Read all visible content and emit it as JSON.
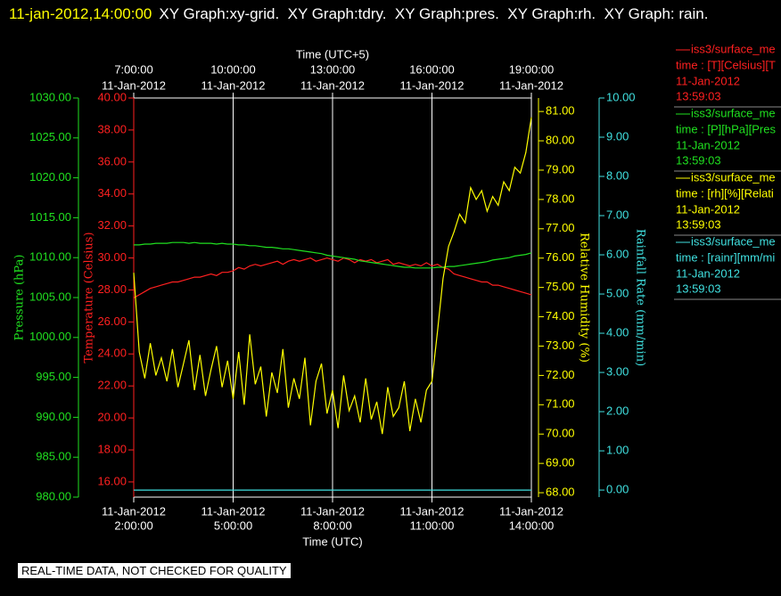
{
  "chart_data": {
    "type": "line",
    "title": "11-jan-2012,14:00:00",
    "title_rest": "XY Graph:xy-grid.  XY Graph:tdry.  XY Graph:pres.  XY Graph:rh.  XY Graph: rain.",
    "xlabel": "Time (UTC)",
    "x2label": "Time (UTC+5)",
    "grid": true,
    "footer": "REAL-TIME DATA, NOT CHECKED FOR QUALITY",
    "xlim": [
      "02:00",
      "14:00"
    ],
    "xticks": [
      {
        "value": "02:00",
        "label": "2:00:00"
      },
      {
        "value": "05:00",
        "label": "5:00:00"
      },
      {
        "value": "08:00",
        "label": "8:00:00"
      },
      {
        "value": "11:00",
        "label": "11:00:00"
      },
      {
        "value": "14:00",
        "label": "14:00:00"
      }
    ],
    "xtick_dates": [
      "11-Jan-2012",
      "11-Jan-2012",
      "11-Jan-2012",
      "11-Jan-2012",
      "11-Jan-2012"
    ],
    "x2lim": [
      "07:00",
      "19:00"
    ],
    "x2ticks": [
      {
        "value": "07:00",
        "label": "7:00:00"
      },
      {
        "value": "10:00",
        "label": "10:00:00"
      },
      {
        "value": "13:00",
        "label": "13:00:00"
      },
      {
        "value": "16:00",
        "label": "16:00:00"
      },
      {
        "value": "19:00",
        "label": "19:00:00"
      }
    ],
    "x2tick_dates": [
      "11-Jan-2012",
      "11-Jan-2012",
      "11-Jan-2012",
      "11-Jan-2012",
      "11-Jan-2012"
    ],
    "x": [
      "02:00",
      "02:10",
      "02:20",
      "02:30",
      "02:40",
      "02:50",
      "03:00",
      "03:10",
      "03:20",
      "03:30",
      "03:40",
      "03:50",
      "04:00",
      "04:10",
      "04:20",
      "04:30",
      "04:40",
      "04:50",
      "05:00",
      "05:10",
      "05:20",
      "05:30",
      "05:40",
      "05:50",
      "06:00",
      "06:10",
      "06:20",
      "06:30",
      "06:40",
      "06:50",
      "07:00",
      "07:10",
      "07:20",
      "07:30",
      "07:40",
      "07:50",
      "08:00",
      "08:10",
      "08:20",
      "08:30",
      "08:40",
      "08:50",
      "09:00",
      "09:10",
      "09:20",
      "09:30",
      "09:40",
      "09:50",
      "10:00",
      "10:10",
      "10:20",
      "10:30",
      "10:40",
      "10:50",
      "11:00",
      "11:10",
      "11:20",
      "11:30",
      "11:40",
      "11:50",
      "12:00",
      "12:10",
      "12:20",
      "12:30",
      "12:40",
      "12:50",
      "13:00",
      "13:10",
      "13:20",
      "13:30",
      "13:40",
      "13:50",
      "14:00"
    ],
    "series": [
      {
        "name": "iss3/surface_me",
        "color": "#ff2020",
        "legend_label": "time : [T][Celsius][T",
        "legend_date": "11-Jan-2012",
        "legend_time": "13:59:03",
        "ylabel": "Temperature (Celsius)",
        "ylim": [
          15.05,
          40
        ],
        "yticks": [
          {
            "value": 16,
            "label": "16.00"
          },
          {
            "value": 18,
            "label": "18.00"
          },
          {
            "value": 20,
            "label": "20.00"
          },
          {
            "value": 22,
            "label": "22.00"
          },
          {
            "value": 24,
            "label": "24.00"
          },
          {
            "value": 26,
            "label": "26.00"
          },
          {
            "value": 28,
            "label": "28.00"
          },
          {
            "value": 30,
            "label": "30.00"
          },
          {
            "value": 32,
            "label": "32.00"
          },
          {
            "value": 34,
            "label": "34.00"
          },
          {
            "value": 36,
            "label": "36.00"
          },
          {
            "value": 38,
            "label": "38.00"
          },
          {
            "value": 40,
            "label": "40.00"
          }
        ],
        "values": [
          27.5,
          27.7,
          27.9,
          28.1,
          28.2,
          28.3,
          28.4,
          28.5,
          28.5,
          28.6,
          28.7,
          28.8,
          28.8,
          28.9,
          29.0,
          28.9,
          29.1,
          29.1,
          29.2,
          29.4,
          29.3,
          29.5,
          29.6,
          29.5,
          29.6,
          29.7,
          29.8,
          29.6,
          29.8,
          29.9,
          29.8,
          29.9,
          30.0,
          29.8,
          29.9,
          30.0,
          29.9,
          29.8,
          30.0,
          29.9,
          29.7,
          29.9,
          29.8,
          29.9,
          29.7,
          29.8,
          29.9,
          29.6,
          29.7,
          29.6,
          29.5,
          29.6,
          29.5,
          29.7,
          29.5,
          29.6,
          29.4,
          29.3,
          29.0,
          28.9,
          28.8,
          28.7,
          28.6,
          28.5,
          28.5,
          28.3,
          28.3,
          28.2,
          28.1,
          28.0,
          27.9,
          27.8,
          27.7
        ]
      },
      {
        "name": "iss3/surface_me",
        "color": "#20e020",
        "legend_label": "time : [P][hPa][Pres",
        "legend_date": "11-Jan-2012",
        "legend_time": "13:59:03",
        "ylabel": "Pressure (hPa)",
        "ylim": [
          980,
          1030
        ],
        "yticks": [
          {
            "value": 980,
            "label": "980.00"
          },
          {
            "value": 985,
            "label": "985.00"
          },
          {
            "value": 990,
            "label": "990.00"
          },
          {
            "value": 995,
            "label": "995.00"
          },
          {
            "value": 1000,
            "label": "1000.00"
          },
          {
            "value": 1005,
            "label": "1005.00"
          },
          {
            "value": 1010,
            "label": "1010.00"
          },
          {
            "value": 1015,
            "label": "1015.00"
          },
          {
            "value": 1020,
            "label": "1020.00"
          },
          {
            "value": 1025,
            "label": "1025.00"
          },
          {
            "value": 1030,
            "label": "1030.00"
          }
        ],
        "values": [
          1011.6,
          1011.6,
          1011.7,
          1011.7,
          1011.8,
          1011.8,
          1011.8,
          1011.9,
          1011.9,
          1011.9,
          1011.8,
          1011.9,
          1011.8,
          1011.8,
          1011.8,
          1011.7,
          1011.8,
          1011.7,
          1011.7,
          1011.6,
          1011.6,
          1011.5,
          1011.5,
          1011.4,
          1011.3,
          1011.3,
          1011.2,
          1011.1,
          1011.1,
          1011.0,
          1010.9,
          1010.8,
          1010.7,
          1010.6,
          1010.5,
          1010.3,
          1010.2,
          1010.1,
          1010.0,
          1009.9,
          1009.8,
          1009.6,
          1009.5,
          1009.4,
          1009.3,
          1009.2,
          1009.1,
          1009.0,
          1008.9,
          1008.8,
          1008.8,
          1008.7,
          1008.7,
          1008.7,
          1008.7,
          1008.8,
          1008.8,
          1008.9,
          1008.9,
          1009.0,
          1009.1,
          1009.2,
          1009.3,
          1009.4,
          1009.5,
          1009.7,
          1009.8,
          1009.9,
          1010.0,
          1010.2,
          1010.3,
          1010.4,
          1010.6
        ]
      },
      {
        "name": "iss3/surface_me",
        "color": "#ffff00",
        "legend_label": "time : [rh][%][Relati",
        "legend_date": "11-Jan-2012",
        "legend_time": "13:59:03",
        "ylabel": "Relative Humidity (%)",
        "ylim": [
          67.85,
          81.46
        ],
        "yticks": [
          {
            "value": 68,
            "label": "68.00"
          },
          {
            "value": 69,
            "label": "69.00"
          },
          {
            "value": 70,
            "label": "70.00"
          },
          {
            "value": 71,
            "label": "71.00"
          },
          {
            "value": 72,
            "label": "72.00"
          },
          {
            "value": 73,
            "label": "73.00"
          },
          {
            "value": 74,
            "label": "74.00"
          },
          {
            "value": 75,
            "label": "75.00"
          },
          {
            "value": 76,
            "label": "76.00"
          },
          {
            "value": 77,
            "label": "77.00"
          },
          {
            "value": 78,
            "label": "78.00"
          },
          {
            "value": 79,
            "label": "79.00"
          },
          {
            "value": 80,
            "label": "80.00"
          },
          {
            "value": 81,
            "label": "81.00"
          }
        ],
        "values": [
          75.5,
          72.8,
          71.9,
          73.1,
          72.0,
          72.6,
          71.8,
          72.9,
          71.6,
          72.4,
          73.2,
          71.5,
          72.7,
          71.3,
          72.2,
          73.0,
          71.6,
          72.5,
          71.2,
          72.8,
          71.0,
          73.4,
          71.7,
          72.3,
          70.6,
          72.1,
          71.4,
          72.9,
          70.9,
          71.9,
          71.2,
          72.6,
          70.3,
          71.8,
          72.4,
          70.7,
          71.5,
          70.2,
          72.0,
          70.8,
          71.3,
          70.4,
          71.9,
          70.5,
          71.1,
          70.0,
          71.6,
          70.6,
          70.9,
          71.8,
          70.1,
          71.2,
          70.4,
          71.5,
          71.8,
          73.5,
          75.3,
          76.4,
          76.9,
          77.5,
          77.2,
          78.4,
          78.0,
          78.3,
          77.6,
          78.1,
          77.8,
          78.6,
          78.3,
          79.1,
          78.9,
          79.6,
          80.8
        ]
      },
      {
        "name": "iss3/surface_me",
        "color": "#40e0e0",
        "legend_label": "time : [rainr][mm/mi",
        "legend_date": "11-Jan-2012",
        "legend_time": "13:59:03",
        "ylabel": "Rainfall Rate (mm/min)",
        "ylim": [
          -0.18,
          10
        ],
        "yticks": [
          {
            "value": 0,
            "label": "0.00"
          },
          {
            "value": 1,
            "label": "1.00"
          },
          {
            "value": 2,
            "label": "2.00"
          },
          {
            "value": 3,
            "label": "3.00"
          },
          {
            "value": 4,
            "label": "4.00"
          },
          {
            "value": 5,
            "label": "5.00"
          },
          {
            "value": 6,
            "label": "6.00"
          },
          {
            "value": 7,
            "label": "7.00"
          },
          {
            "value": 8,
            "label": "8.00"
          },
          {
            "value": 9,
            "label": "9.00"
          },
          {
            "value": 10,
            "label": "10.00"
          }
        ],
        "values": [
          0,
          0,
          0,
          0,
          0,
          0,
          0,
          0,
          0,
          0,
          0,
          0,
          0,
          0,
          0,
          0,
          0,
          0,
          0,
          0,
          0,
          0,
          0,
          0,
          0,
          0,
          0,
          0,
          0,
          0,
          0,
          0,
          0,
          0,
          0,
          0,
          0,
          0,
          0,
          0,
          0,
          0,
          0,
          0,
          0,
          0,
          0,
          0,
          0,
          0,
          0,
          0,
          0,
          0,
          0,
          0,
          0,
          0,
          0,
          0,
          0,
          0,
          0,
          0,
          0,
          0,
          0,
          0,
          0,
          0,
          0,
          0,
          0
        ]
      }
    ]
  }
}
